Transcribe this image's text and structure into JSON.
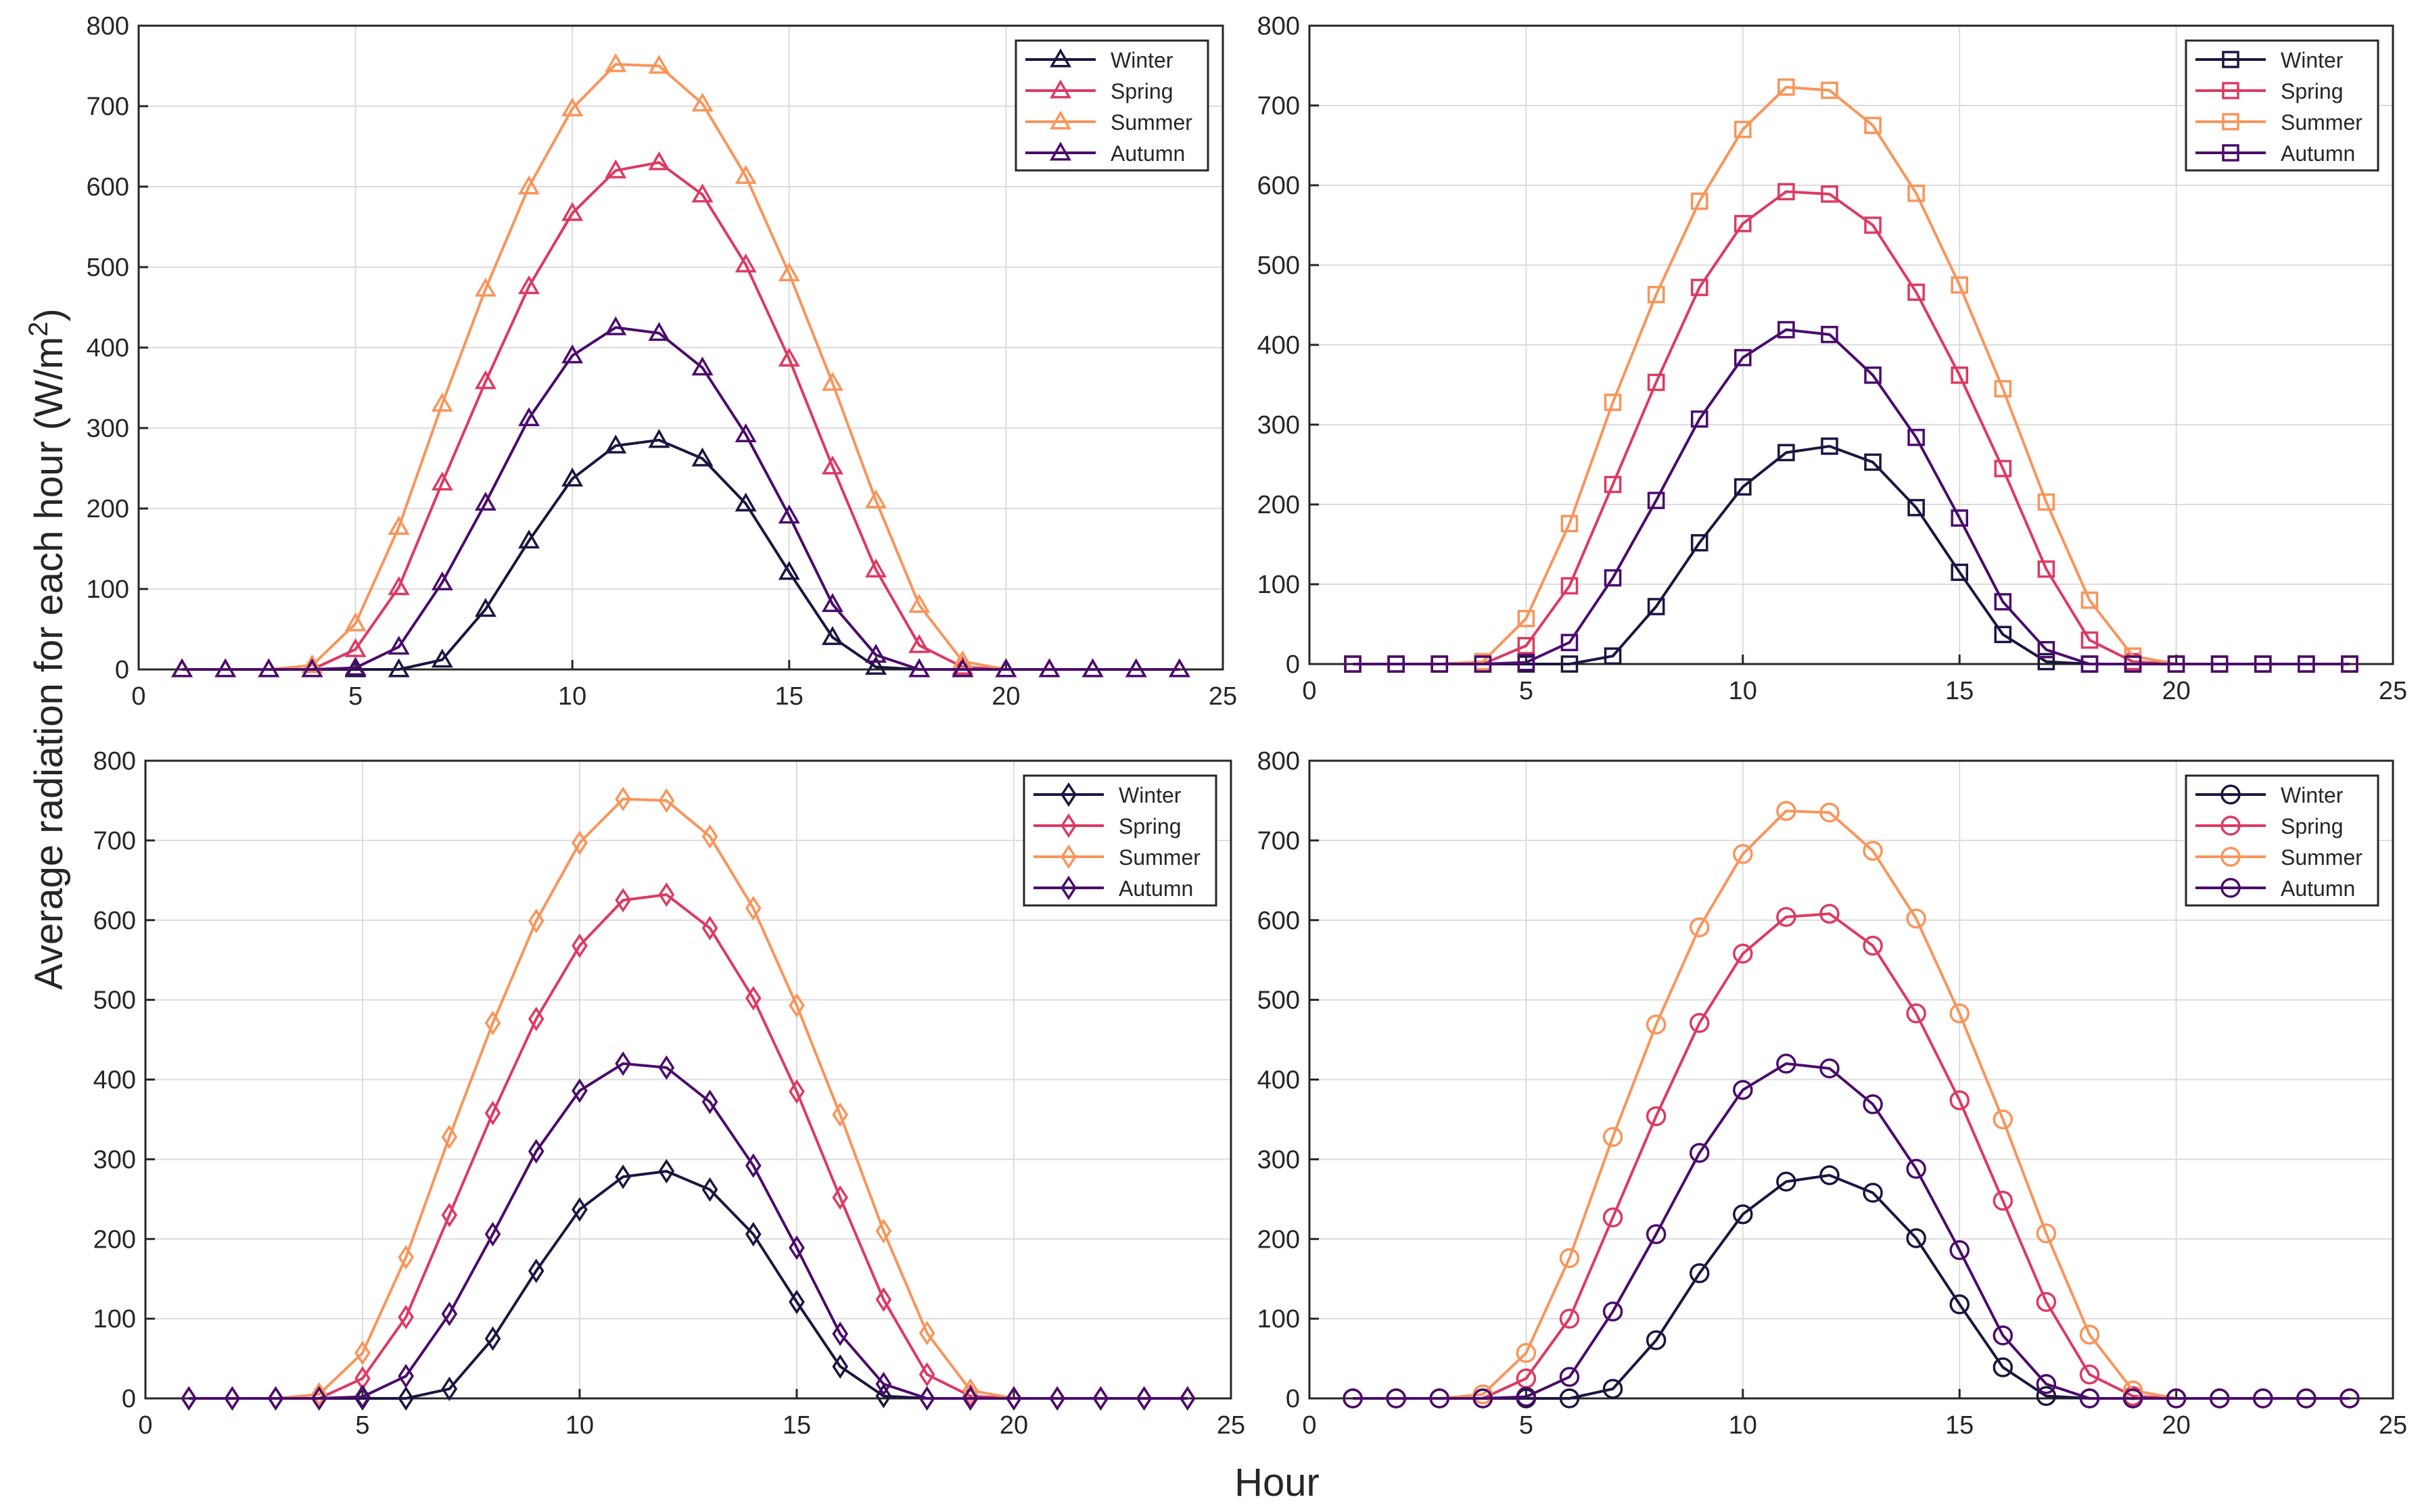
{
  "figure": {
    "ylabel": "Average radiation for each hour (W/m",
    "ylabel_sup": "2",
    "ylabel_close": ")",
    "xlabel": "Hour"
  },
  "colors": {
    "Winter": "#1a1640",
    "Spring": "#dc3a63",
    "Summer": "#f8955a",
    "Autumn": "#4a0c6b",
    "grid": "#dcdcdc",
    "axis": "#262626"
  },
  "chart_data": [
    {
      "type": "line",
      "marker": "triangle",
      "x": [
        1,
        2,
        3,
        4,
        5,
        6,
        7,
        8,
        9,
        10,
        11,
        12,
        13,
        14,
        15,
        16,
        17,
        18,
        19,
        20,
        21,
        22,
        23,
        24
      ],
      "xlim": [
        0,
        25
      ],
      "ylim": [
        0,
        800
      ],
      "xticks": [
        0,
        5,
        10,
        15,
        20,
        25
      ],
      "yticks": [
        0,
        100,
        200,
        300,
        400,
        500,
        600,
        700,
        800
      ],
      "grid": true,
      "legend": "top-right",
      "series": [
        {
          "name": "Winter",
          "values": [
            0,
            0,
            0,
            0,
            0,
            0,
            12,
            75,
            160,
            237,
            278,
            285,
            262,
            206,
            121,
            40,
            3,
            0,
            0,
            0,
            0,
            0,
            0,
            0
          ]
        },
        {
          "name": "Spring",
          "values": [
            0,
            0,
            0,
            0,
            25,
            102,
            232,
            358,
            476,
            567,
            620,
            630,
            590,
            503,
            386,
            252,
            124,
            30,
            3,
            0,
            0,
            0,
            0,
            0
          ]
        },
        {
          "name": "Summer",
          "values": [
            0,
            0,
            0,
            5,
            57,
            177,
            330,
            473,
            600,
            697,
            752,
            750,
            703,
            613,
            492,
            356,
            210,
            80,
            10,
            0,
            0,
            0,
            0,
            0
          ]
        },
        {
          "name": "Autumn",
          "values": [
            0,
            0,
            0,
            0,
            2,
            28,
            108,
            207,
            312,
            390,
            425,
            418,
            375,
            292,
            191,
            81,
            18,
            0,
            0,
            0,
            0,
            0,
            0,
            0
          ]
        }
      ]
    },
    {
      "type": "line",
      "marker": "square",
      "x": [
        1,
        2,
        3,
        4,
        5,
        6,
        7,
        8,
        9,
        10,
        11,
        12,
        13,
        14,
        15,
        16,
        17,
        18,
        19,
        20,
        21,
        22,
        23,
        24
      ],
      "xlim": [
        0,
        25
      ],
      "ylim": [
        0,
        800
      ],
      "xticks": [
        0,
        5,
        10,
        15,
        20,
        25
      ],
      "yticks": [
        0,
        100,
        200,
        300,
        400,
        500,
        600,
        700,
        800
      ],
      "grid": true,
      "legend": "top-right",
      "series": [
        {
          "name": "Winter",
          "values": [
            0,
            0,
            0,
            0,
            0,
            0,
            10,
            72,
            152,
            222,
            265,
            273,
            253,
            196,
            115,
            37,
            3,
            0,
            0,
            0,
            0,
            0,
            0,
            0
          ]
        },
        {
          "name": "Spring",
          "values": [
            0,
            0,
            0,
            0,
            23,
            98,
            225,
            353,
            472,
            552,
            592,
            589,
            550,
            466,
            362,
            245,
            119,
            30,
            3,
            0,
            0,
            0,
            0,
            0
          ]
        },
        {
          "name": "Summer",
          "values": [
            0,
            0,
            0,
            3,
            57,
            176,
            328,
            463,
            580,
            670,
            723,
            719,
            675,
            590,
            475,
            345,
            203,
            80,
            10,
            0,
            0,
            0,
            0,
            0
          ]
        },
        {
          "name": "Autumn",
          "values": [
            0,
            0,
            0,
            0,
            2,
            27,
            108,
            205,
            307,
            384,
            419,
            413,
            362,
            284,
            183,
            78,
            18,
            0,
            0,
            0,
            0,
            0,
            0,
            0
          ]
        }
      ]
    },
    {
      "type": "line",
      "marker": "diamond",
      "x": [
        1,
        2,
        3,
        4,
        5,
        6,
        7,
        8,
        9,
        10,
        11,
        12,
        13,
        14,
        15,
        16,
        17,
        18,
        19,
        20,
        21,
        22,
        23,
        24
      ],
      "xlim": [
        0,
        25
      ],
      "ylim": [
        0,
        800
      ],
      "xticks": [
        0,
        5,
        10,
        15,
        20,
        25
      ],
      "yticks": [
        0,
        100,
        200,
        300,
        400,
        500,
        600,
        700,
        800
      ],
      "grid": true,
      "legend": "top-right",
      "series": [
        {
          "name": "Winter",
          "values": [
            0,
            0,
            0,
            0,
            0,
            0,
            12,
            75,
            160,
            237,
            278,
            285,
            262,
            206,
            121,
            40,
            3,
            0,
            0,
            0,
            0,
            0,
            0,
            0
          ]
        },
        {
          "name": "Spring",
          "values": [
            0,
            0,
            0,
            0,
            25,
            102,
            230,
            358,
            476,
            568,
            625,
            632,
            590,
            502,
            385,
            252,
            124,
            30,
            3,
            0,
            0,
            0,
            0,
            0
          ]
        },
        {
          "name": "Summer",
          "values": [
            0,
            0,
            0,
            5,
            57,
            177,
            328,
            471,
            599,
            697,
            752,
            750,
            705,
            615,
            493,
            356,
            210,
            82,
            10,
            0,
            0,
            0,
            0,
            0
          ]
        },
        {
          "name": "Autumn",
          "values": [
            0,
            0,
            0,
            0,
            2,
            28,
            106,
            206,
            310,
            386,
            420,
            415,
            372,
            292,
            189,
            81,
            18,
            0,
            0,
            0,
            0,
            0,
            0,
            0
          ]
        }
      ]
    },
    {
      "type": "line",
      "marker": "circle",
      "x": [
        1,
        2,
        3,
        4,
        5,
        6,
        7,
        8,
        9,
        10,
        11,
        12,
        13,
        14,
        15,
        16,
        17,
        18,
        19,
        20,
        21,
        22,
        23,
        24
      ],
      "xlim": [
        0,
        25
      ],
      "ylim": [
        0,
        800
      ],
      "xticks": [
        0,
        5,
        10,
        15,
        20,
        25
      ],
      "yticks": [
        0,
        100,
        200,
        300,
        400,
        500,
        600,
        700,
        800
      ],
      "grid": true,
      "legend": "top-right",
      "series": [
        {
          "name": "Winter",
          "values": [
            0,
            0,
            0,
            0,
            0,
            0,
            12,
            73,
            157,
            231,
            272,
            280,
            258,
            201,
            118,
            39,
            3,
            0,
            0,
            0,
            0,
            0,
            0,
            0
          ]
        },
        {
          "name": "Spring",
          "values": [
            0,
            0,
            0,
            0,
            25,
            100,
            227,
            354,
            471,
            558,
            604,
            608,
            568,
            483,
            374,
            248,
            121,
            30,
            3,
            0,
            0,
            0,
            0,
            0
          ]
        },
        {
          "name": "Summer",
          "values": [
            0,
            0,
            0,
            5,
            57,
            176,
            328,
            469,
            591,
            683,
            737,
            735,
            687,
            602,
            483,
            350,
            207,
            80,
            10,
            0,
            0,
            0,
            0,
            0
          ]
        },
        {
          "name": "Autumn",
          "values": [
            0,
            0,
            0,
            0,
            2,
            27,
            109,
            206,
            308,
            387,
            420,
            414,
            369,
            288,
            186,
            79,
            18,
            0,
            0,
            0,
            0,
            0,
            0,
            0
          ]
        }
      ]
    }
  ]
}
